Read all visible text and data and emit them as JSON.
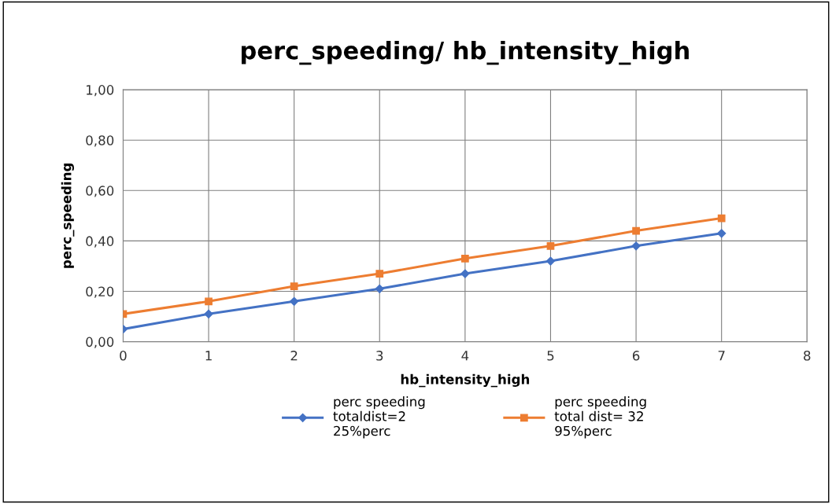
{
  "chart_data": {
    "type": "line",
    "title": "perc_speeding/ hb_intensity_high",
    "xlabel": "hb_intensity_high",
    "ylabel": "perc_speeding",
    "x": [
      0,
      1,
      2,
      3,
      4,
      5,
      6,
      7
    ],
    "series": [
      {
        "name": "perc speeding\ntotaldist=2\n25%perc",
        "color": "#4472c4",
        "marker": "diamond",
        "values": [
          0.05,
          0.11,
          0.16,
          0.21,
          0.27,
          0.32,
          0.38,
          0.43
        ]
      },
      {
        "name": "perc speeding\ntotal dist= 32\n95%perc",
        "color": "#ed7d31",
        "marker": "square",
        "values": [
          0.11,
          0.16,
          0.22,
          0.27,
          0.33,
          0.38,
          0.44,
          0.49
        ]
      }
    ],
    "xlim": [
      0,
      8
    ],
    "xticks": [
      0,
      1,
      2,
      3,
      4,
      5,
      6,
      7,
      8
    ],
    "ylim": [
      0,
      1
    ],
    "yticks": [
      {
        "value": 0,
        "label": "0,00"
      },
      {
        "value": 0.2,
        "label": "0,20"
      },
      {
        "value": 0.4,
        "label": "0,40"
      },
      {
        "value": 0.6,
        "label": "0,60"
      },
      {
        "value": 0.8,
        "label": "0,80"
      },
      {
        "value": 1,
        "label": "1,00"
      }
    ],
    "grid": true,
    "legend": "bottom",
    "line_style": "solid"
  }
}
